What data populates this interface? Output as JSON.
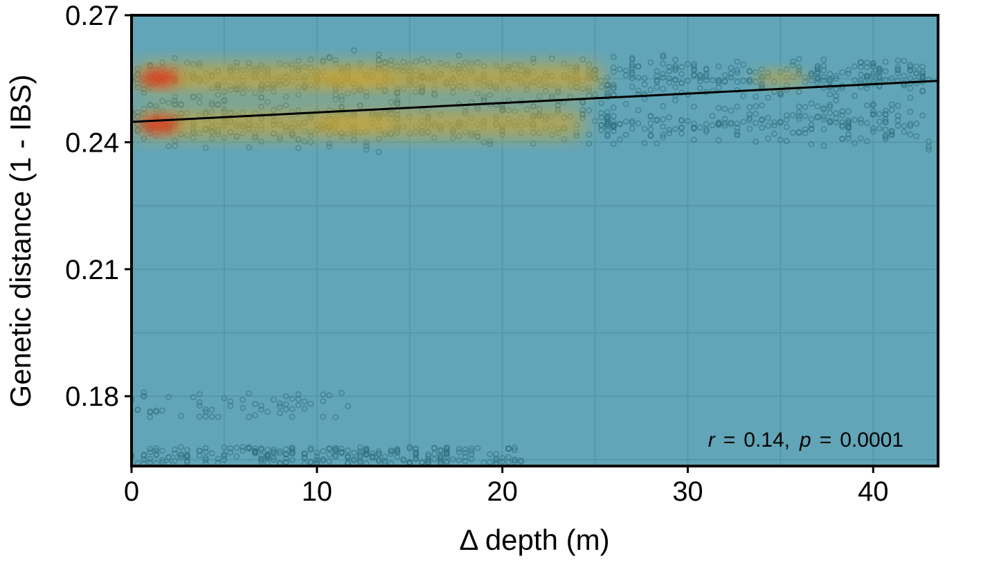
{
  "chart_data": {
    "type": "scatter",
    "title": "",
    "xlabel": "Δ depth (m)",
    "ylabel": "Genetic distance (1 - IBS)",
    "xlim": [
      0,
      43.5
    ],
    "ylim": [
      0.1635,
      0.27
    ],
    "x_ticks": [
      0,
      10,
      20,
      30,
      40
    ],
    "x_tick_labels": [
      "0",
      "10",
      "20",
      "30",
      "40"
    ],
    "y_ticks": [
      0.18,
      0.21,
      0.24,
      0.27
    ],
    "y_tick_labels": [
      "0.18",
      "0.21",
      "0.24",
      "0.27"
    ],
    "grid": true,
    "annotation": {
      "r_symbol": "r",
      "r_eq": "=",
      "r_value": "0.14,",
      "p_symbol": "p",
      "p_eq": "=",
      "p_value": "0.0001",
      "placement": "bottom-right"
    },
    "regression_line": {
      "x": [
        0,
        43.5
      ],
      "y": [
        0.2448,
        0.2545
      ]
    },
    "density_hotspots": [
      {
        "x": 1.5,
        "y": 0.2552,
        "level": "high"
      },
      {
        "x": 1.5,
        "y": 0.2442,
        "level": "high"
      },
      {
        "x": 12,
        "y": 0.255,
        "level": "medium"
      },
      {
        "x": 12,
        "y": 0.2445,
        "level": "medium"
      },
      {
        "x": 35,
        "y": 0.2552,
        "level": "low"
      }
    ],
    "point_clusters": [
      {
        "x_range": [
          0,
          26
        ],
        "y_range": [
          0.222,
          0.268
        ],
        "approx_points": 900
      },
      {
        "x_range": [
          26,
          43
        ],
        "y_range": [
          0.232,
          0.267
        ],
        "approx_points": 450
      },
      {
        "x_range": [
          0,
          21
        ],
        "y_range": [
          0.164,
          0.168
        ],
        "approx_points": 260
      },
      {
        "x_range": [
          0,
          12
        ],
        "y_range": [
          0.175,
          0.181
        ],
        "approx_points": 60
      }
    ],
    "colors": {
      "panel_background": "#62a5b8",
      "point_color": "#2f6f7e",
      "density_low": "#d4a52a",
      "density_high": "#e22a1a",
      "regression_line": "#000000"
    }
  }
}
